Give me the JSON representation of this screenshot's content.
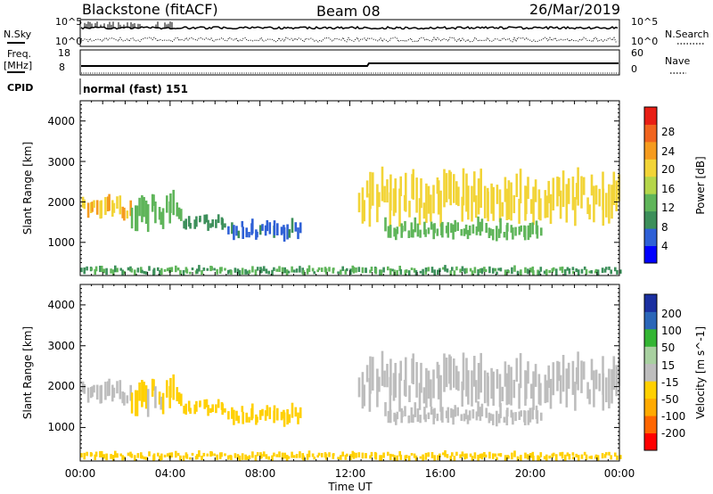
{
  "header": {
    "radar": "Blackstone (fitACF)",
    "beam": "Beam 08",
    "date": "26/Mar/2019"
  },
  "noise_panel": {
    "left_label": "N.Sky",
    "right_label": "N.Search",
    "left_ticks": [
      "10^5",
      "10^0"
    ],
    "right_ticks": [
      "10^5",
      "10^0"
    ]
  },
  "freq_panel": {
    "left_label_1": "Freq.",
    "left_label_2": "[MHz]",
    "right_label": "Nave",
    "left_ticks": [
      "18",
      "8"
    ],
    "right_ticks": [
      "60",
      "0"
    ]
  },
  "cpid": {
    "label": "CPID",
    "value": "normal (fast) 151"
  },
  "x_axis": {
    "label": "Time UT",
    "ticks": [
      "00:00",
      "04:00",
      "08:00",
      "12:00",
      "16:00",
      "20:00",
      "00:00"
    ]
  },
  "colors": {
    "power": [
      "#0000ff",
      "#2e60d6",
      "#3c8f5a",
      "#5fb55a",
      "#b5d64a",
      "#f2d437",
      "#f59b1e",
      "#f0641e",
      "#e81e14"
    ],
    "velocity": [
      "#ff0000",
      "#ff6600",
      "#ffaa00",
      "#ffd000",
      "#bdbdbd",
      "#a8d0a0",
      "#33b533",
      "#2a66b8",
      "#1a2fa0"
    ]
  },
  "chart_data": [
    {
      "type": "heatmap",
      "title": "",
      "xlabel": "",
      "ylabel": "Slant Range [km]",
      "yticks": [
        "1000",
        "2000",
        "3000",
        "4000"
      ],
      "ylim": [
        180,
        4500
      ],
      "xlim": [
        "00:00",
        "24:00"
      ],
      "colorbar_label": "Power [dB]",
      "colorbar_ticks": [
        "4",
        "8",
        "12",
        "16",
        "20",
        "24",
        "28"
      ],
      "colorbar_range": [
        0,
        30
      ],
      "echo_regions": [
        {
          "time_start": 0.0,
          "time_end": 2.2,
          "range_min": 1500,
          "range_max": 2200,
          "power": 20
        },
        {
          "time_start": 2.2,
          "time_end": 4.5,
          "range_min": 1300,
          "range_max": 2300,
          "power": 12
        },
        {
          "time_start": 4.5,
          "time_end": 6.5,
          "range_min": 1300,
          "range_max": 1700,
          "power": 8
        },
        {
          "time_start": 6.5,
          "time_end": 9.8,
          "range_min": 1050,
          "range_max": 1600,
          "power": 6
        },
        {
          "time_start": 12.3,
          "time_end": 24.0,
          "range_min": 1400,
          "range_max": 2800,
          "power": 18
        },
        {
          "time_start": 13.5,
          "time_end": 20.5,
          "range_min": 1050,
          "range_max": 1600,
          "power": 12
        },
        {
          "time_start": 0.0,
          "time_end": 24.0,
          "range_min": 180,
          "range_max": 420,
          "power": 10
        }
      ]
    },
    {
      "type": "heatmap",
      "title": "",
      "xlabel": "Time UT",
      "ylabel": "Slant Range [km]",
      "yticks": [
        "1000",
        "2000",
        "3000",
        "4000"
      ],
      "ylim": [
        180,
        4500
      ],
      "xlim": [
        "00:00",
        "24:00"
      ],
      "colorbar_label": "Velocity [m s^-1]",
      "colorbar_ticks": [
        "-200",
        "-100",
        "-50",
        "-15",
        "15",
        "50",
        "100",
        "200"
      ],
      "colorbar_range": [
        -250,
        250
      ],
      "echo_regions": [
        {
          "time_start": 0.0,
          "time_end": 2.2,
          "range_min": 1500,
          "range_max": 2200,
          "velocity": 0
        },
        {
          "time_start": 2.2,
          "time_end": 4.5,
          "range_min": 1300,
          "range_max": 2300,
          "velocity": -40
        },
        {
          "time_start": 4.5,
          "time_end": 6.5,
          "range_min": 1300,
          "range_max": 1700,
          "velocity": -50
        },
        {
          "time_start": 6.5,
          "time_end": 9.8,
          "range_min": 1050,
          "range_max": 1600,
          "velocity": -60
        },
        {
          "time_start": 12.3,
          "time_end": 24.0,
          "range_min": 1400,
          "range_max": 2800,
          "velocity": 0
        },
        {
          "time_start": 13.5,
          "time_end": 20.5,
          "range_min": 1050,
          "range_max": 1600,
          "velocity": 0
        },
        {
          "time_start": 0.0,
          "time_end": 24.0,
          "range_min": 180,
          "range_max": 420,
          "velocity": -45
        }
      ]
    }
  ]
}
